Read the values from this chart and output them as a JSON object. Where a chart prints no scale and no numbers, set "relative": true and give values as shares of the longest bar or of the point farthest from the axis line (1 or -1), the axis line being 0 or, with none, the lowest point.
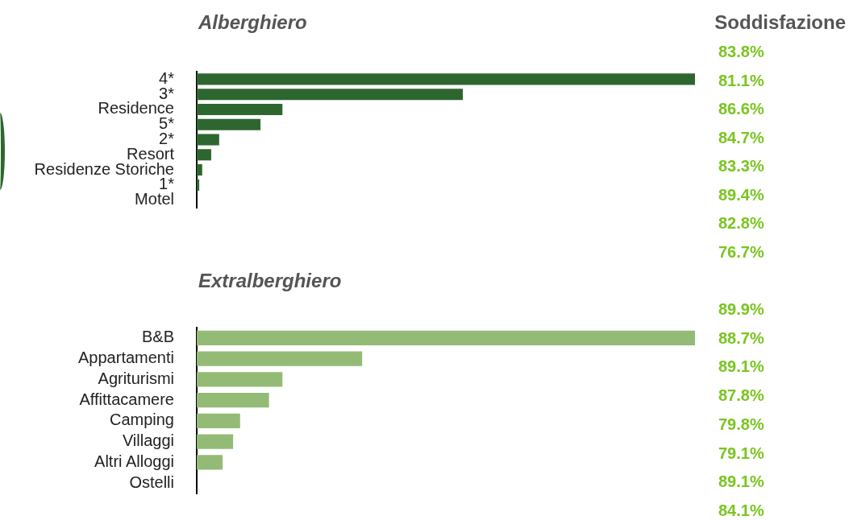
{
  "chart_data": [
    {
      "type": "bar",
      "orientation": "horizontal",
      "relative": true,
      "title": "Alberghiero",
      "categories": [
        "4*",
        "3*",
        "Residence",
        "5*",
        "2*",
        "Resort",
        "Residenze Storiche",
        "1*",
        "Motel"
      ],
      "values": [
        1,
        0.534,
        0.172,
        0.128,
        0.045,
        0.029,
        0.011,
        0.005,
        0
      ],
      "color": "#2e6630",
      "annotations": [
        "Soddisfazione",
        "83.8%",
        "81.1%",
        "86.6%",
        "84.7%",
        "83.3%",
        "89.4%",
        "82.8%",
        "76.7%"
      ]
    },
    {
      "type": "bar",
      "orientation": "horizontal",
      "relative": true,
      "title": "Extralberghiero",
      "categories": [
        "B&B",
        "Appartamenti",
        "Agriturismi",
        "Affittacamere",
        "Camping",
        "Villaggi",
        "Altri Alloggi",
        "Ostelli"
      ],
      "values": [
        1,
        0.332,
        0.172,
        0.145,
        0.087,
        0.073,
        0.052,
        0
      ],
      "color": "#93bb75",
      "annotations": [
        "89.9%",
        "88.7%",
        "89.1%",
        "87.8%",
        "79.8%",
        "79.1%",
        "89.1%",
        "84.1%"
      ]
    }
  ]
}
